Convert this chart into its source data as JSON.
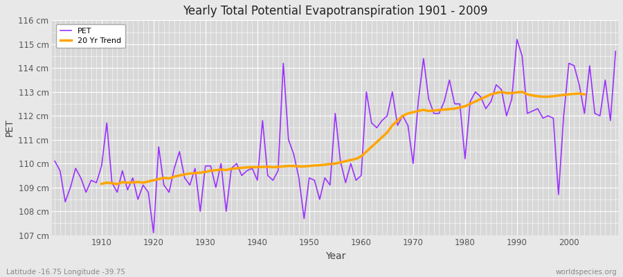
{
  "title": "Yearly Total Potential Evapotranspiration 1901 - 2009",
  "xlabel": "Year",
  "ylabel": "PET",
  "subtitle": "Latitude -16.75 Longitude -39.75",
  "watermark": "worldspecies.org",
  "pet_color": "#9B30FF",
  "trend_color": "#FFA500",
  "fig_bg_color": "#E8E8E8",
  "plot_bg_color": "#D8D8D8",
  "ylim": [
    107,
    116
  ],
  "yticks": [
    107,
    108,
    109,
    110,
    111,
    112,
    113,
    114,
    115,
    116
  ],
  "years": [
    1901,
    1902,
    1903,
    1904,
    1905,
    1906,
    1907,
    1908,
    1909,
    1910,
    1911,
    1912,
    1913,
    1914,
    1915,
    1916,
    1917,
    1918,
    1919,
    1920,
    1921,
    1922,
    1923,
    1924,
    1925,
    1926,
    1927,
    1928,
    1929,
    1930,
    1931,
    1932,
    1933,
    1934,
    1935,
    1936,
    1937,
    1938,
    1939,
    1940,
    1941,
    1942,
    1943,
    1944,
    1945,
    1946,
    1947,
    1948,
    1949,
    1950,
    1951,
    1952,
    1953,
    1954,
    1955,
    1956,
    1957,
    1958,
    1959,
    1960,
    1961,
    1962,
    1963,
    1964,
    1965,
    1966,
    1967,
    1968,
    1969,
    1970,
    1971,
    1972,
    1973,
    1974,
    1975,
    1976,
    1977,
    1978,
    1979,
    1980,
    1981,
    1982,
    1983,
    1984,
    1985,
    1986,
    1987,
    1988,
    1989,
    1990,
    1991,
    1992,
    1993,
    1994,
    1995,
    1996,
    1997,
    1998,
    1999,
    2000,
    2001,
    2002,
    2003,
    2004,
    2005,
    2006,
    2007,
    2008,
    2009
  ],
  "pet_values": [
    110.1,
    109.7,
    108.4,
    109.0,
    109.8,
    109.4,
    108.8,
    109.3,
    109.2,
    109.9,
    111.7,
    109.2,
    108.8,
    109.7,
    108.9,
    109.4,
    108.5,
    109.1,
    108.8,
    107.1,
    110.7,
    109.1,
    108.8,
    109.8,
    110.5,
    109.4,
    109.1,
    109.8,
    108.0,
    109.9,
    109.9,
    109.0,
    110.0,
    108.0,
    109.8,
    110.0,
    109.5,
    109.7,
    109.8,
    109.3,
    111.8,
    109.5,
    109.3,
    109.7,
    114.2,
    111.0,
    110.4,
    109.4,
    107.7,
    109.4,
    109.3,
    108.5,
    109.4,
    109.1,
    112.1,
    110.1,
    109.2,
    110.0,
    109.3,
    109.5,
    113.0,
    111.7,
    111.5,
    111.8,
    112.0,
    113.0,
    111.6,
    112.0,
    111.6,
    110.0,
    112.6,
    114.4,
    112.7,
    112.1,
    112.1,
    112.6,
    113.5,
    112.5,
    112.5,
    110.2,
    112.6,
    113.0,
    112.8,
    112.3,
    112.6,
    113.3,
    113.1,
    112.0,
    112.7,
    115.2,
    114.5,
    112.1,
    112.2,
    112.3,
    111.9,
    112.0,
    111.9,
    108.7,
    112.0,
    114.2,
    114.1,
    113.3,
    112.1,
    114.1,
    112.1,
    112.0,
    113.5,
    111.8,
    114.7
  ],
  "trend_values": [
    null,
    null,
    null,
    null,
    null,
    null,
    null,
    null,
    null,
    109.15,
    109.2,
    109.18,
    109.14,
    109.22,
    109.2,
    109.21,
    109.23,
    109.2,
    109.25,
    109.3,
    109.35,
    109.4,
    109.38,
    109.45,
    109.5,
    109.55,
    109.58,
    109.6,
    109.62,
    109.65,
    109.7,
    109.72,
    109.75,
    109.73,
    109.78,
    109.8,
    109.82,
    109.84,
    109.85,
    109.85,
    109.86,
    109.87,
    109.85,
    109.86,
    109.88,
    109.9,
    109.9,
    109.88,
    109.88,
    109.9,
    109.92,
    109.93,
    109.95,
    109.98,
    110.0,
    110.05,
    110.1,
    110.15,
    110.2,
    110.3,
    110.5,
    110.7,
    110.9,
    111.1,
    111.3,
    111.6,
    111.8,
    112.0,
    112.1,
    112.15,
    112.2,
    112.25,
    112.2,
    112.22,
    112.24,
    112.26,
    112.28,
    112.3,
    112.35,
    112.4,
    112.5,
    112.6,
    112.7,
    112.8,
    112.9,
    112.95,
    113.0,
    112.95,
    112.95,
    112.98,
    113.0,
    112.9,
    112.85,
    112.82,
    112.8,
    112.8,
    112.82,
    112.85,
    112.87,
    112.9,
    112.92,
    112.93,
    112.9,
    null,
    null,
    null,
    null,
    null,
    null
  ]
}
